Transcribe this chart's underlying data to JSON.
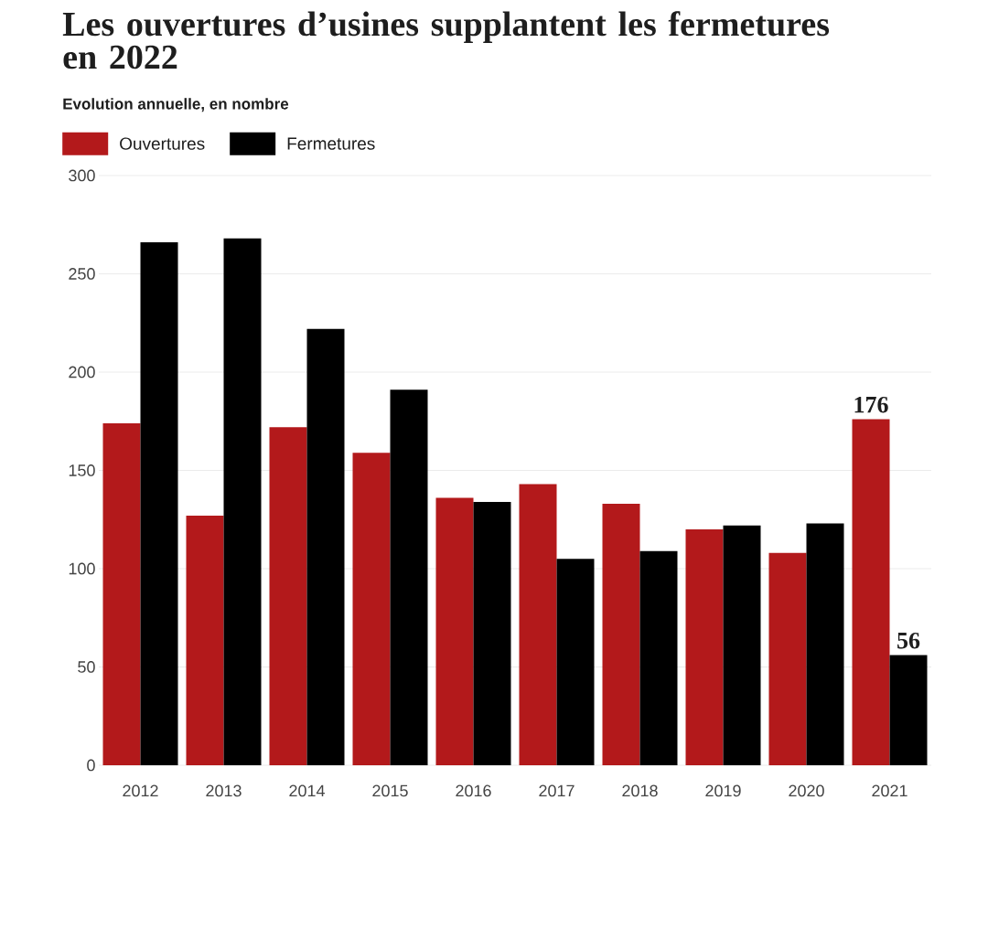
{
  "chart_data": {
    "type": "bar",
    "title": "Les ouvertures d’usines supplantent les fermetures en 2022",
    "subtitle": "Evolution annuelle, en nombre",
    "categories": [
      "2012",
      "2013",
      "2014",
      "2015",
      "2016",
      "2017",
      "2018",
      "2019",
      "2020",
      "2021"
    ],
    "series": [
      {
        "name": "Ouvertures",
        "color": "#b3191b",
        "values": [
          174,
          127,
          172,
          159,
          136,
          143,
          133,
          120,
          108,
          176
        ],
        "value_labels": [
          null,
          null,
          null,
          null,
          null,
          null,
          null,
          null,
          null,
          "176"
        ]
      },
      {
        "name": "Fermetures",
        "color": "#000000",
        "values": [
          266,
          268,
          222,
          191,
          134,
          105,
          109,
          122,
          123,
          56
        ],
        "value_labels": [
          null,
          null,
          null,
          null,
          null,
          null,
          null,
          null,
          null,
          "56"
        ]
      }
    ],
    "ylim": [
      0,
      300
    ],
    "yticks": [
      0,
      50,
      100,
      150,
      200,
      250,
      300
    ],
    "grid": "y",
    "legend": "top left"
  }
}
